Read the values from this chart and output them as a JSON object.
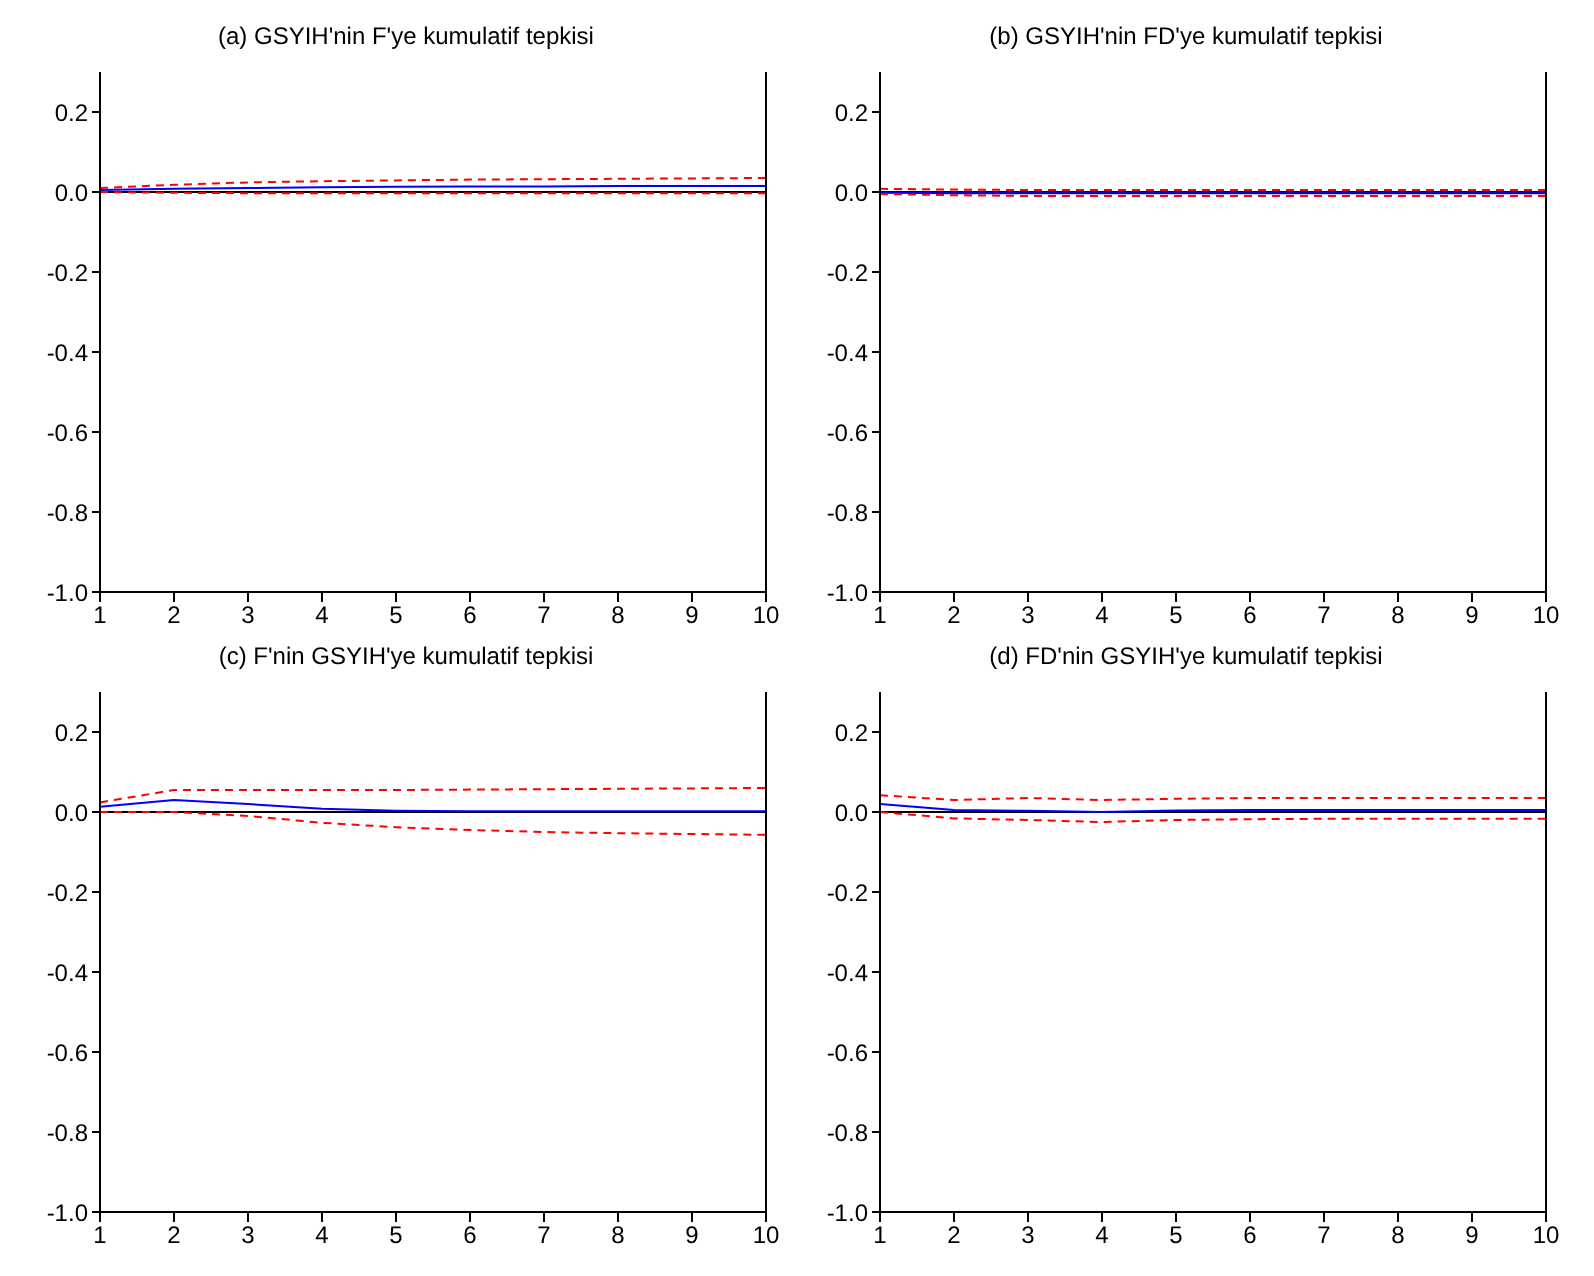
{
  "chart_data": [
    {
      "type": "line",
      "title": "(a) GSYIH'nin F'ye kumulatif tepkisi",
      "x": [
        1,
        2,
        3,
        4,
        5,
        6,
        7,
        8,
        9,
        10
      ],
      "xlim": [
        1,
        10
      ],
      "xticks": [
        1,
        2,
        3,
        4,
        5,
        6,
        7,
        8,
        9,
        10
      ],
      "ylim": [
        -1.0,
        0.3
      ],
      "yticks": [
        {
          "value": -1.0,
          "label": "-1.0"
        },
        {
          "value": -0.8,
          "label": "-0.8"
        },
        {
          "value": -0.6,
          "label": "-0.6"
        },
        {
          "value": -0.4,
          "label": "-0.4"
        },
        {
          "value": -0.2,
          "label": "-0.2"
        },
        {
          "value": 0,
          "label": "0.0"
        },
        {
          "value": 0.2,
          "label": "0.2"
        }
      ],
      "grid": false,
      "legend": false,
      "marker": "none",
      "ref_lines": [
        {
          "axis": "y",
          "value": 0,
          "color": "#000000"
        }
      ],
      "series": [
        {
          "color": "#0000ff",
          "line_style": "solid",
          "values": [
            0.005,
            0.008,
            0.01,
            0.012,
            0.013,
            0.014,
            0.014,
            0.015,
            0.015,
            0.015
          ]
        },
        {
          "color": "#ff0000",
          "line_style": "dashed",
          "values": [
            0.01,
            0.018,
            0.024,
            0.027,
            0.029,
            0.031,
            0.032,
            0.033,
            0.034,
            0.035
          ]
        },
        {
          "color": "#ff0000",
          "line_style": "dashed",
          "values": [
            0.0,
            -0.002,
            -0.003,
            -0.003,
            -0.003,
            -0.003,
            -0.003,
            -0.003,
            -0.003,
            -0.003
          ]
        }
      ]
    },
    {
      "type": "line",
      "title": "(b) GSYIH'nin FD'ye kumulatif tepkisi",
      "x": [
        1,
        2,
        3,
        4,
        5,
        6,
        7,
        8,
        9,
        10
      ],
      "xlim": [
        1,
        10
      ],
      "xticks": [
        1,
        2,
        3,
        4,
        5,
        6,
        7,
        8,
        9,
        10
      ],
      "ylim": [
        -1.0,
        0.3
      ],
      "yticks": [
        {
          "value": -1.0,
          "label": "-1.0"
        },
        {
          "value": -0.8,
          "label": "-0.8"
        },
        {
          "value": -0.6,
          "label": "-0.6"
        },
        {
          "value": -0.4,
          "label": "-0.4"
        },
        {
          "value": -0.2,
          "label": "-0.2"
        },
        {
          "value": 0,
          "label": "0.0"
        },
        {
          "value": 0.2,
          "label": "0.2"
        }
      ],
      "grid": false,
      "legend": false,
      "marker": "none",
      "ref_lines": [
        {
          "axis": "y",
          "value": 0,
          "color": "#000000"
        }
      ],
      "series": [
        {
          "color": "#0000ff",
          "line_style": "solid",
          "values": [
            -0.002,
            -0.003,
            -0.003,
            -0.003,
            -0.003,
            -0.003,
            -0.003,
            -0.003,
            -0.003,
            -0.003
          ]
        },
        {
          "color": "#ff0000",
          "line_style": "dashed",
          "values": [
            0.008,
            0.006,
            0.005,
            0.005,
            0.005,
            0.005,
            0.005,
            0.005,
            0.005,
            0.005
          ]
        },
        {
          "color": "#ff0000",
          "line_style": "dashed",
          "values": [
            -0.005,
            -0.008,
            -0.01,
            -0.01,
            -0.01,
            -0.01,
            -0.01,
            -0.01,
            -0.01,
            -0.01
          ]
        }
      ]
    },
    {
      "type": "line",
      "title": "(c) F'nin GSYIH'ye kumulatif tepkisi",
      "x": [
        1,
        2,
        3,
        4,
        5,
        6,
        7,
        8,
        9,
        10
      ],
      "xlim": [
        1,
        10
      ],
      "xticks": [
        1,
        2,
        3,
        4,
        5,
        6,
        7,
        8,
        9,
        10
      ],
      "ylim": [
        -1.0,
        0.3
      ],
      "yticks": [
        {
          "value": -1.0,
          "label": "-1.0"
        },
        {
          "value": -0.8,
          "label": "-0.8"
        },
        {
          "value": -0.6,
          "label": "-0.6"
        },
        {
          "value": -0.4,
          "label": "-0.4"
        },
        {
          "value": -0.2,
          "label": "-0.2"
        },
        {
          "value": 0,
          "label": "0.0"
        },
        {
          "value": 0.2,
          "label": "0.2"
        }
      ],
      "grid": false,
      "legend": false,
      "marker": "none",
      "ref_lines": [
        {
          "axis": "y",
          "value": 0,
          "color": "#000000"
        }
      ],
      "series": [
        {
          "color": "#0000ff",
          "line_style": "solid",
          "values": [
            0.013,
            0.03,
            0.02,
            0.008,
            0.003,
            0.002,
            0.002,
            0.002,
            0.002,
            0.002
          ]
        },
        {
          "color": "#ff0000",
          "line_style": "dashed",
          "values": [
            0.024,
            0.055,
            0.055,
            0.055,
            0.055,
            0.056,
            0.057,
            0.058,
            0.059,
            0.06
          ]
        },
        {
          "color": "#ff0000",
          "line_style": "dashed",
          "values": [
            0.0,
            0.0,
            -0.01,
            -0.027,
            -0.038,
            -0.045,
            -0.05,
            -0.053,
            -0.055,
            -0.057
          ]
        }
      ]
    },
    {
      "type": "line",
      "title": "(d) FD'nin GSYIH'ye kumulatif tepkisi",
      "x": [
        1,
        2,
        3,
        4,
        5,
        6,
        7,
        8,
        9,
        10
      ],
      "xlim": [
        1,
        10
      ],
      "xticks": [
        1,
        2,
        3,
        4,
        5,
        6,
        7,
        8,
        9,
        10
      ],
      "ylim": [
        -1.0,
        0.3
      ],
      "yticks": [
        {
          "value": -1.0,
          "label": "-1.0"
        },
        {
          "value": -0.8,
          "label": "-0.8"
        },
        {
          "value": -0.6,
          "label": "-0.6"
        },
        {
          "value": -0.4,
          "label": "-0.4"
        },
        {
          "value": -0.2,
          "label": "-0.2"
        },
        {
          "value": 0,
          "label": "0.0"
        },
        {
          "value": 0.2,
          "label": "0.2"
        }
      ],
      "grid": false,
      "legend": false,
      "marker": "none",
      "ref_lines": [
        {
          "axis": "y",
          "value": 0,
          "color": "#000000"
        }
      ],
      "series": [
        {
          "color": "#0000ff",
          "line_style": "solid",
          "values": [
            0.02,
            0.005,
            0.003,
            0.0,
            0.004,
            0.005,
            0.005,
            0.005,
            0.005,
            0.005
          ]
        },
        {
          "color": "#ff0000",
          "line_style": "dashed",
          "values": [
            0.042,
            0.03,
            0.035,
            0.03,
            0.033,
            0.035,
            0.035,
            0.035,
            0.035,
            0.035
          ]
        },
        {
          "color": "#ff0000",
          "line_style": "dashed",
          "values": [
            0.0,
            -0.016,
            -0.02,
            -0.025,
            -0.02,
            -0.018,
            -0.017,
            -0.017,
            -0.017,
            -0.017
          ]
        }
      ]
    }
  ]
}
